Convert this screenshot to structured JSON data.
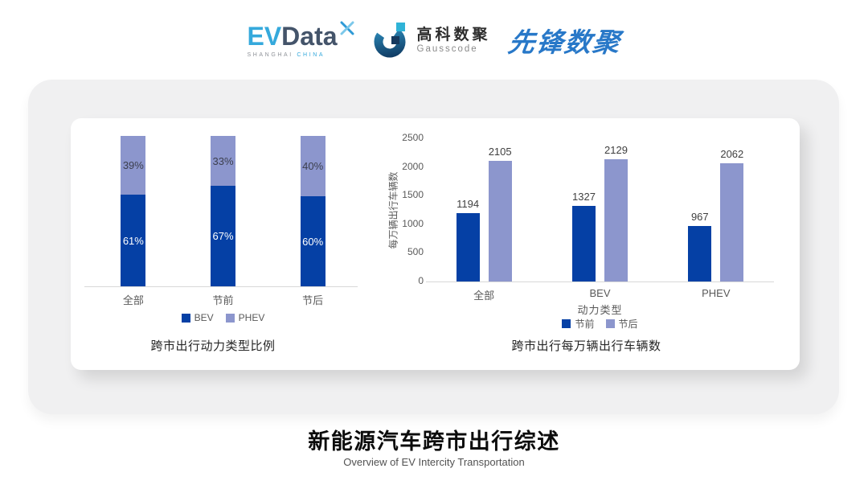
{
  "header": {
    "evdata_logo": {
      "ev": "EV",
      "data": "Data",
      "mark_icon": "x-mark",
      "sub_left": "SHANGHAI",
      "sub_right": "CHINA"
    },
    "gausscode_logo": {
      "icon": "gausscode-g-mark",
      "name_cn": "高科数聚",
      "name_en": "Gausscode"
    },
    "pioneer_logo": {
      "text": "先锋数聚"
    }
  },
  "colors": {
    "series_dark_blue": "#0540A5",
    "series_light_blue": "#8C96CD",
    "panel_bg": "#F0F0F1",
    "card_bg": "#FFFFFF",
    "axis_line": "#D8D8D8",
    "evdata_blue": "#35A9DC",
    "evdata_dark": "#44546A",
    "pioneer_blue": "#2878C8"
  },
  "chart_data": [
    {
      "type": "bar",
      "subtype": "stacked-percent",
      "title": "跨市出行动力类型比例",
      "categories": [
        "全部",
        "节前",
        "节后"
      ],
      "series": [
        {
          "name": "BEV",
          "color": "#0540A5",
          "values": [
            61,
            67,
            60
          ]
        },
        {
          "name": "PHEV",
          "color": "#8C96CD",
          "values": [
            39,
            33,
            40
          ]
        }
      ],
      "value_suffix": "%",
      "ylim": [
        0,
        100
      ],
      "grid": false,
      "legend_position": "bottom"
    },
    {
      "type": "bar",
      "subtype": "grouped",
      "title": "跨市出行每万辆出行车辆数",
      "xlabel": "动力类型",
      "ylabel": "每万辆出行车辆数",
      "categories": [
        "全部",
        "BEV",
        "PHEV"
      ],
      "series": [
        {
          "name": "节前",
          "color": "#0540A5",
          "values": [
            1194,
            1327,
            967
          ]
        },
        {
          "name": "节后",
          "color": "#8C96CD",
          "values": [
            2105,
            2129,
            2062
          ]
        }
      ],
      "yticks": [
        0,
        500,
        1000,
        1500,
        2000,
        2500
      ],
      "ylim": [
        0,
        2500
      ],
      "grid": false,
      "legend_position": "bottom"
    }
  ],
  "footer": {
    "title": "新能源汽车跨市出行综述",
    "subtitle": "Overview of EV Intercity Transportation"
  }
}
